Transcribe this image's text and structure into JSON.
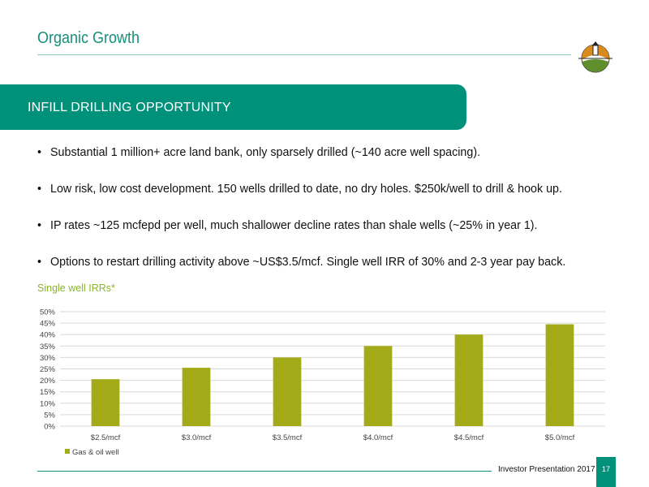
{
  "header": {
    "title": "Organic Growth"
  },
  "banner": {
    "text": "INFILL DRILLING OPPORTUNITY"
  },
  "bullets": [
    "Substantial 1 million+ acre land bank, only sparsely drilled (~140 acre well spacing).",
    "Low risk, low cost development. 150 wells drilled to date, no dry holes. $250k/well to drill & hook up.",
    "IP rates ~125 mcfepd per well, much shallower decline rates than shale wells (~25% in year 1).",
    "Options to restart drilling activity above ~US$3.5/mcf. Single well IRR of 30% and 2-3 year pay back."
  ],
  "bullet_char": "•",
  "chart_data": {
    "type": "bar",
    "title": "Single well IRRs*",
    "categories": [
      "$2.5/mcf",
      "$3.0/mcf",
      "$3.5/mcf",
      "$4.0/mcf",
      "$4.5/mcf",
      "$5.0/mcf"
    ],
    "series": [
      {
        "name": "Gas & oil well",
        "values": [
          20.5,
          25.5,
          30,
          35,
          40,
          44.5
        ],
        "color": "#a3ab18"
      }
    ],
    "y_ticks": [
      "0%",
      "5%",
      "10%",
      "15%",
      "20%",
      "25%",
      "30%",
      "35%",
      "40%",
      "45%",
      "50%"
    ],
    "ylim": [
      0,
      50
    ],
    "grid": true,
    "legend_position": "bottom-left"
  },
  "footer": {
    "text": "Investor Presentation 2017",
    "page_number": "17"
  },
  "colors": {
    "brand": "#00917b",
    "accent_green": "#8ab52a",
    "bar": "#a3ab18"
  }
}
